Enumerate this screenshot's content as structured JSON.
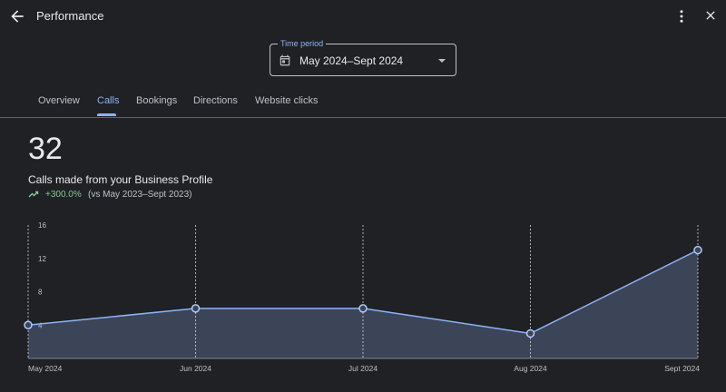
{
  "header": {
    "title": "Performance",
    "back_icon": "arrow-back-icon",
    "more_icon": "more-vert-icon",
    "close_icon": "close-icon"
  },
  "time_period": {
    "label": "Time period",
    "value": "May 2024–Sept 2024",
    "calendar_icon": "calendar-icon",
    "dropdown_icon": "arrow-drop-down-icon"
  },
  "tabs": [
    {
      "label": "Overview",
      "active": false
    },
    {
      "label": "Calls",
      "active": true
    },
    {
      "label": "Bookings",
      "active": false
    },
    {
      "label": "Directions",
      "active": false
    },
    {
      "label": "Website clicks",
      "active": false
    }
  ],
  "summary": {
    "total": "32",
    "subtitle": "Calls made from your Business Profile",
    "change": "+300.0%",
    "comparison": "(vs May 2023–Sept 2023)",
    "trend_icon": "trending-up-icon"
  },
  "colors": {
    "background": "#202124",
    "accent": "#8ab4f8",
    "area_fill": "#3c4457",
    "positive": "#81c995"
  },
  "chart_data": {
    "type": "area",
    "categories": [
      "May 2024",
      "Jun 2024",
      "Jul 2024",
      "Aug 2024",
      "Sept 2024"
    ],
    "values": [
      4,
      6,
      6,
      3,
      13
    ],
    "ylim": [
      0,
      16
    ],
    "yticks": [
      4,
      8,
      12,
      16
    ],
    "grid": "vertical dashed lines at each category"
  }
}
